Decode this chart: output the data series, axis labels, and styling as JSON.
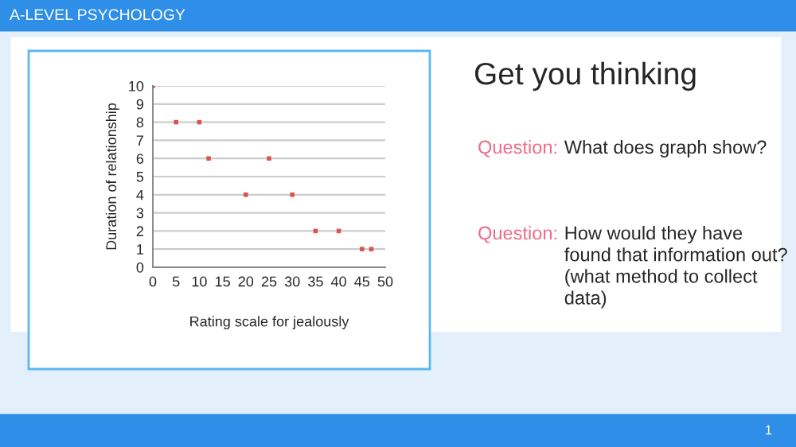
{
  "chart_data": {
    "type": "scatter",
    "xlabel": "Rating scale for jealously",
    "ylabel": "Duration of relationship",
    "x": [
      0,
      5,
      10,
      12,
      20,
      25,
      30,
      35,
      40,
      45,
      47
    ],
    "values": [
      10,
      8,
      8,
      6,
      4,
      6,
      4,
      2,
      2,
      1,
      1
    ],
    "color": "#d9534f",
    "marker": "square",
    "xlim": [
      0,
      50
    ],
    "ylim": [
      0,
      10
    ],
    "xticks": [
      0,
      5,
      10,
      15,
      20,
      25,
      30,
      35,
      40,
      45,
      50
    ],
    "yticks": [
      0,
      1,
      2,
      3,
      4,
      5,
      6,
      7,
      8,
      9,
      10
    ],
    "grid": "y",
    "annotations": [
      "A-LEVEL PSYCHOLOGY",
      "Get you thinking",
      "Question:",
      "What does graph show?",
      "Question:",
      "How would they have found that information out? (what method to collect data)",
      "1"
    ]
  }
}
